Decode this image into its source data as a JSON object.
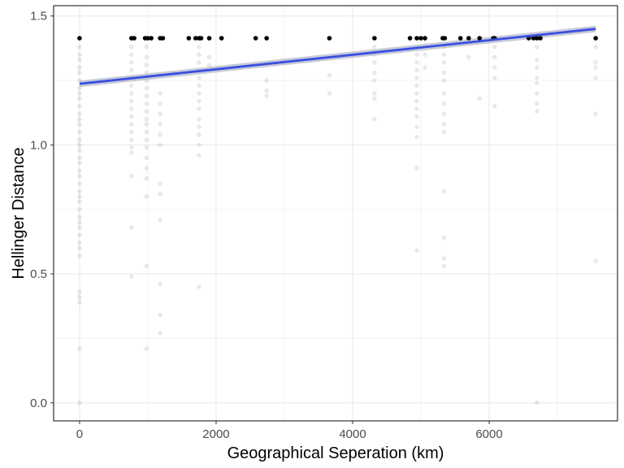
{
  "chart_data": {
    "type": "scatter",
    "title": "",
    "xlabel": "Geographical Seperation (km)",
    "ylabel": "Hellinger Distance",
    "xlim": [
      -380,
      7880
    ],
    "ylim": [
      -0.07,
      1.54
    ],
    "x_ticks": [
      0,
      2000,
      4000,
      6000
    ],
    "x_tick_labels": [
      "0",
      "2000",
      "4000",
      "6000"
    ],
    "y_ticks": [
      0.0,
      0.5,
      1.0,
      1.5
    ],
    "y_tick_labels": [
      "0.0",
      "0.5",
      "1.0",
      "1.5"
    ],
    "grid": true,
    "legend": "none",
    "point_color": "#000000",
    "max_points": {
      "y": 1.414,
      "x": [
        0,
        760,
        800,
        960,
        1000,
        1050,
        1180,
        1220,
        1600,
        1700,
        1750,
        1780,
        1900,
        2080,
        2580,
        2740,
        3660,
        4320,
        4840,
        4940,
        5000,
        5060,
        5320,
        5350,
        5580,
        5700,
        5860,
        6060,
        6080,
        6580,
        6650,
        6700,
        6750,
        7560
      ]
    },
    "faint_columns": [
      {
        "x": 0,
        "y": [
          1.38,
          1.35,
          1.33,
          1.3,
          1.28,
          1.25,
          1.22,
          1.2,
          1.18,
          1.15,
          1.12,
          1.1,
          1.08,
          1.05,
          1.02,
          1.0,
          0.98,
          0.95,
          0.93,
          0.9,
          0.88,
          0.85,
          0.82,
          0.8,
          0.78,
          0.75,
          0.72,
          0.7,
          0.68,
          0.65,
          0.62,
          0.6,
          0.57,
          0.43,
          0.41,
          0.39,
          0.21,
          0.0
        ]
      },
      {
        "x": 760,
        "y": [
          1.38,
          1.35,
          1.32,
          1.29,
          1.26,
          1.23,
          1.2,
          1.17,
          1.14,
          1.11,
          1.08,
          1.05,
          1.02,
          0.99,
          0.97,
          0.88,
          0.68,
          0.49
        ]
      },
      {
        "x": 980,
        "y": [
          1.38,
          1.34,
          1.31,
          1.28,
          1.25,
          1.22,
          1.19,
          1.16,
          1.13,
          1.1,
          1.08,
          1.05,
          1.02,
          0.99,
          0.95,
          0.91,
          0.87,
          0.8,
          0.53,
          0.21
        ]
      },
      {
        "x": 1180,
        "y": [
          1.2,
          1.16,
          1.12,
          1.08,
          1.04,
          1.0,
          0.85,
          0.81,
          0.71,
          0.46,
          0.34,
          0.27
        ]
      },
      {
        "x": 1750,
        "y": [
          1.38,
          1.35,
          1.32,
          1.29,
          1.26,
          1.23,
          1.2,
          1.17,
          1.14,
          1.1,
          1.07,
          1.04,
          1.0,
          0.96,
          0.45
        ]
      },
      {
        "x": 1900,
        "y": [
          1.34,
          1.31
        ]
      },
      {
        "x": 2740,
        "y": [
          1.25,
          1.21,
          1.19
        ]
      },
      {
        "x": 3660,
        "y": [
          1.27,
          1.2
        ]
      },
      {
        "x": 4320,
        "y": [
          1.38,
          1.35,
          1.32,
          1.28,
          1.25,
          1.2,
          1.18,
          1.1
        ]
      },
      {
        "x": 4940,
        "y": [
          1.38,
          1.35,
          1.32,
          1.29,
          1.26,
          1.23,
          1.2,
          1.17,
          1.14,
          1.11,
          1.07,
          1.03,
          0.91,
          0.59
        ]
      },
      {
        "x": 5060,
        "y": [
          1.35,
          1.3
        ]
      },
      {
        "x": 5340,
        "y": [
          1.38,
          1.35,
          1.32,
          1.28,
          1.25,
          1.2,
          1.16,
          1.12,
          1.08,
          1.05,
          0.82,
          0.64,
          0.56,
          0.53
        ]
      },
      {
        "x": 5700,
        "y": [
          1.34
        ]
      },
      {
        "x": 5860,
        "y": [
          1.18
        ]
      },
      {
        "x": 6080,
        "y": [
          1.38,
          1.34,
          1.3,
          1.26,
          1.15
        ]
      },
      {
        "x": 6700,
        "y": [
          1.38,
          1.33,
          1.3,
          1.26,
          1.24,
          1.2,
          1.16,
          1.13,
          0.0
        ]
      },
      {
        "x": 7560,
        "y": [
          1.38,
          1.32,
          1.3,
          1.26,
          1.12,
          0.55
        ]
      }
    ],
    "fit_line": {
      "x": [
        0,
        7560
      ],
      "y": [
        1.237,
        1.45
      ],
      "color": "#3a4fe0",
      "ci_color": "#b0b5c8"
    },
    "panel_border_color": "#333333",
    "grid_color": "#ebebeb"
  }
}
